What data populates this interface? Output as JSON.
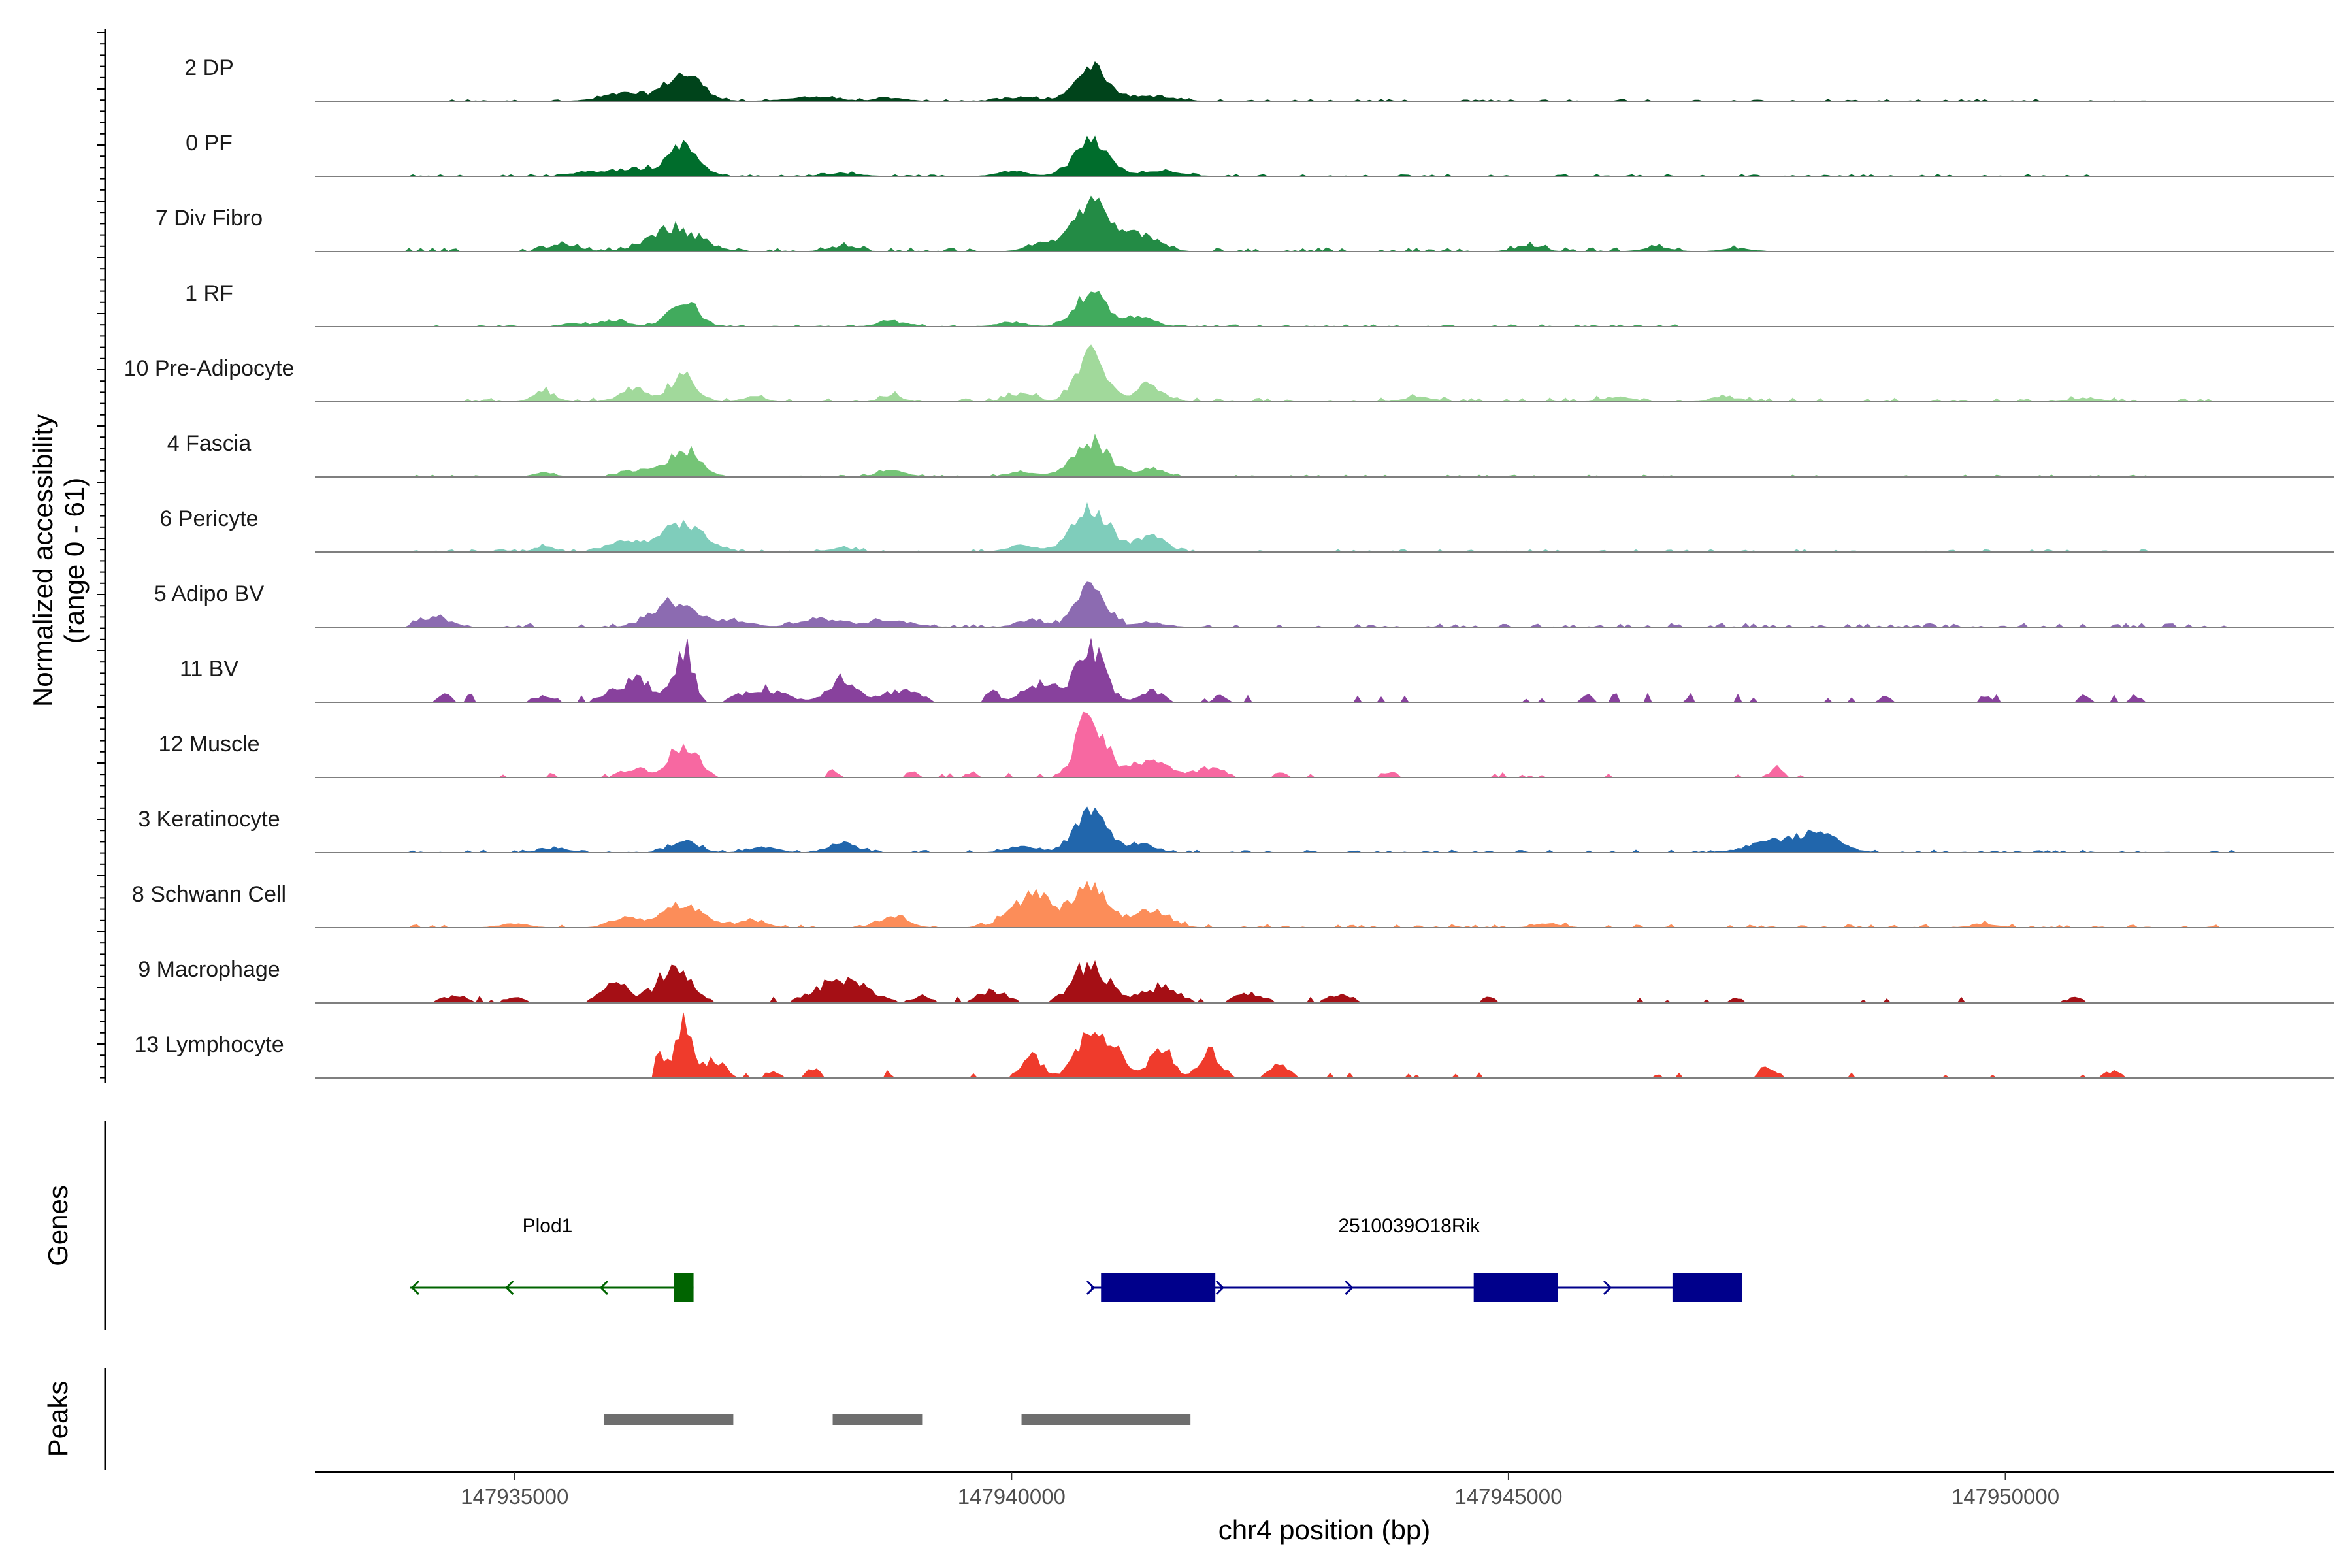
{
  "chart_data": {
    "type": "area",
    "title": "",
    "chromosome": "chr4",
    "xlabel": "chr4 position (bp)",
    "ylabel": "Normalized accessibility",
    "ylabel_range": "(range 0 - 61)",
    "ylim": [
      0,
      61
    ],
    "xlim": [
      147932990,
      147953310
    ],
    "x_ticks": [
      147935000,
      147940000,
      147945000,
      147950000
    ],
    "x_tick_labels": [
      "147935000",
      "147940000",
      "147945000",
      "147950000"
    ],
    "genes_label": "Genes",
    "peaks_label": "Peaks",
    "tracks": [
      {
        "name": "2 DP",
        "color": "#00441b",
        "peaks": [
          [
            147936700,
            0.42,
            260
          ],
          [
            147940800,
            0.58,
            230
          ],
          [
            147936100,
            0.12,
            300
          ],
          [
            147938000,
            0.06,
            350
          ],
          [
            147938800,
            0.05,
            200
          ],
          [
            147941400,
            0.08,
            300
          ],
          [
            147940100,
            0.06,
            250
          ]
        ],
        "noise": 0.03,
        "extent": [
          147934200,
          147951500
        ]
      },
      {
        "name": "0 PF",
        "color": "#006d2c",
        "peaks": [
          [
            147936700,
            0.46,
            220
          ],
          [
            147940800,
            0.55,
            240
          ],
          [
            147936200,
            0.12,
            300
          ],
          [
            147935700,
            0.06,
            200
          ],
          [
            147938300,
            0.05,
            250
          ],
          [
            147941500,
            0.07,
            300
          ],
          [
            147940000,
            0.08,
            200
          ]
        ],
        "noise": 0.03,
        "extent": [
          147933900,
          147951500
        ]
      },
      {
        "name": "7 Div Fibro",
        "color": "#238b45",
        "peaks": [
          [
            147936600,
            0.34,
            350
          ],
          [
            147940800,
            0.7,
            250
          ],
          [
            147941300,
            0.26,
            250
          ],
          [
            147940300,
            0.12,
            200
          ],
          [
            147935500,
            0.1,
            220
          ],
          [
            147938300,
            0.08,
            200
          ],
          [
            147945200,
            0.08,
            200
          ],
          [
            147946500,
            0.06,
            200
          ],
          [
            147947300,
            0.05,
            200
          ]
        ],
        "noise": 0.06,
        "extent": [
          147933900,
          147947600
        ]
      },
      {
        "name": "1 RF",
        "color": "#41ab5d",
        "peaks": [
          [
            147936700,
            0.4,
            200
          ],
          [
            147940800,
            0.52,
            220
          ],
          [
            147941300,
            0.15,
            200
          ],
          [
            147936000,
            0.1,
            200
          ],
          [
            147938800,
            0.08,
            200
          ],
          [
            147940000,
            0.07,
            200
          ],
          [
            147935600,
            0.05,
            150
          ]
        ],
        "noise": 0.03,
        "extent": [
          147933900,
          147947000
        ]
      },
      {
        "name": "10 Pre-Adipocyte",
        "color": "#a1d99b",
        "peaks": [
          [
            147936700,
            0.4,
            180
          ],
          [
            147940800,
            0.78,
            200
          ],
          [
            147941400,
            0.25,
            200
          ],
          [
            147936200,
            0.2,
            200
          ],
          [
            147935300,
            0.15,
            150
          ],
          [
            147938800,
            0.1,
            150
          ],
          [
            147937400,
            0.08,
            150
          ],
          [
            147940100,
            0.12,
            200
          ],
          [
            147944100,
            0.07,
            200
          ],
          [
            147946100,
            0.08,
            200
          ],
          [
            147947200,
            0.07,
            200
          ],
          [
            147950800,
            0.06,
            200
          ]
        ],
        "noise": 0.06,
        "extent": [
          147934500,
          147952200
        ]
      },
      {
        "name": "4 Fascia",
        "color": "#74c476",
        "peaks": [
          [
            147936700,
            0.42,
            230
          ],
          [
            147940800,
            0.55,
            250
          ],
          [
            147941400,
            0.12,
            200
          ],
          [
            147936200,
            0.1,
            200
          ],
          [
            147938800,
            0.1,
            200
          ],
          [
            147935300,
            0.06,
            150
          ],
          [
            147940100,
            0.08,
            200
          ]
        ],
        "noise": 0.03,
        "extent": [
          147933900,
          147952200
        ]
      },
      {
        "name": "6 Pericyte",
        "color": "#7fcdbb",
        "peaks": [
          [
            147936700,
            0.42,
            300
          ],
          [
            147940800,
            0.65,
            260
          ],
          [
            147941400,
            0.24,
            200
          ],
          [
            147936100,
            0.15,
            250
          ],
          [
            147935300,
            0.08,
            150
          ],
          [
            147938300,
            0.06,
            200
          ],
          [
            147940100,
            0.1,
            200
          ]
        ],
        "noise": 0.04,
        "extent": [
          147933900,
          147951500
        ]
      },
      {
        "name": "5 Adipo BV",
        "color": "#8c6bb1",
        "peaks": [
          [
            147936600,
            0.38,
            300
          ],
          [
            147940800,
            0.7,
            200
          ],
          [
            147934200,
            0.16,
            200
          ],
          [
            147938100,
            0.12,
            300
          ],
          [
            147938800,
            0.1,
            300
          ],
          [
            147937200,
            0.1,
            250
          ],
          [
            147941400,
            0.08,
            200
          ],
          [
            147940200,
            0.1,
            200
          ]
        ],
        "noise": 0.06,
        "extent": [
          147933900,
          147952200
        ]
      },
      {
        "name": "11 BV",
        "color": "#88419d",
        "peaks": [
          [
            147936700,
            0.9,
            120
          ],
          [
            147936200,
            0.35,
            300
          ],
          [
            147940800,
            0.8,
            200
          ],
          [
            147940300,
            0.28,
            250
          ],
          [
            147938300,
            0.4,
            200
          ],
          [
            147937500,
            0.22,
            300
          ],
          [
            147938900,
            0.2,
            250
          ],
          [
            147934300,
            0.15,
            80
          ],
          [
            147939800,
            0.2,
            80
          ],
          [
            147941400,
            0.2,
            150
          ],
          [
            147942100,
            0.12,
            80
          ],
          [
            147935300,
            0.1,
            150
          ],
          [
            147945800,
            0.1,
            80
          ],
          [
            147948800,
            0.1,
            80
          ],
          [
            147949800,
            0.1,
            80
          ],
          [
            147950800,
            0.1,
            80
          ],
          [
            147951300,
            0.1,
            80
          ]
        ],
        "noise": 0.09,
        "extent": [
          147934200,
          147951400
        ],
        "sparse": true
      },
      {
        "name": "12 Muscle",
        "color": "#f768a1",
        "peaks": [
          [
            147936700,
            0.52,
            200
          ],
          [
            147940800,
            0.95,
            200
          ],
          [
            147936200,
            0.15,
            200
          ],
          [
            147941400,
            0.3,
            250
          ],
          [
            147942000,
            0.15,
            200
          ],
          [
            147938200,
            0.1,
            80
          ],
          [
            147939000,
            0.1,
            80
          ],
          [
            147939600,
            0.08,
            80
          ],
          [
            147947700,
            0.15,
            100
          ],
          [
            147943800,
            0.1,
            100
          ],
          [
            147942700,
            0.08,
            100
          ]
        ],
        "noise": 0.05,
        "extent": [
          147934700,
          147948000
        ],
        "sparse": true
      },
      {
        "name": "3 Keratinocyte",
        "color": "#2166ac",
        "peaks": [
          [
            147936700,
            0.18,
            200
          ],
          [
            147940800,
            0.64,
            220
          ],
          [
            147948100,
            0.3,
            300
          ],
          [
            147947600,
            0.15,
            300
          ],
          [
            147938300,
            0.15,
            200
          ],
          [
            147941300,
            0.12,
            200
          ],
          [
            147937500,
            0.08,
            200
          ],
          [
            147935400,
            0.06,
            200
          ],
          [
            147940100,
            0.1,
            200
          ]
        ],
        "noise": 0.04,
        "extent": [
          147933900,
          147952300
        ]
      },
      {
        "name": "8 Schwann Cell",
        "color": "#fc8d59",
        "peaks": [
          [
            147936700,
            0.35,
            300
          ],
          [
            147940800,
            0.6,
            250
          ],
          [
            147940200,
            0.5,
            300
          ],
          [
            147941400,
            0.25,
            250
          ],
          [
            147936100,
            0.15,
            200
          ],
          [
            147938800,
            0.18,
            200
          ],
          [
            147937400,
            0.1,
            200
          ],
          [
            147935000,
            0.06,
            200
          ],
          [
            147945400,
            0.06,
            200
          ],
          [
            147949800,
            0.05,
            200
          ]
        ],
        "noise": 0.05,
        "extent": [
          147933900,
          147952200
        ]
      },
      {
        "name": "9 Macrophage",
        "color": "#a50f15",
        "peaks": [
          [
            147936600,
            0.5,
            250
          ],
          [
            147936000,
            0.3,
            200
          ],
          [
            147938300,
            0.38,
            350
          ],
          [
            147940800,
            0.62,
            250
          ],
          [
            147941500,
            0.25,
            250
          ],
          [
            147939800,
            0.2,
            200
          ],
          [
            147942400,
            0.15,
            200
          ],
          [
            147934400,
            0.1,
            200
          ],
          [
            147935000,
            0.08,
            150
          ],
          [
            147939100,
            0.1,
            150
          ],
          [
            147943300,
            0.12,
            200
          ],
          [
            147944800,
            0.08,
            100
          ],
          [
            147947300,
            0.08,
            100
          ],
          [
            147950700,
            0.08,
            100
          ]
        ],
        "noise": 0.07,
        "extent": [
          147933900,
          147950800
        ],
        "sparse": true
      },
      {
        "name": "13 Lymphocyte",
        "color": "#ef3b2c",
        "peaks": [
          [
            147936700,
            1.0,
            100
          ],
          [
            147936400,
            0.4,
            150
          ],
          [
            147937000,
            0.3,
            150
          ],
          [
            147940800,
            0.7,
            200
          ],
          [
            147941500,
            0.5,
            150
          ],
          [
            147941100,
            0.3,
            150
          ],
          [
            147940200,
            0.35,
            150
          ],
          [
            147942000,
            0.4,
            150
          ],
          [
            147942700,
            0.2,
            150
          ],
          [
            147947600,
            0.18,
            100
          ],
          [
            147951100,
            0.12,
            120
          ],
          [
            147937600,
            0.12,
            100
          ],
          [
            147938000,
            0.15,
            100
          ]
        ],
        "noise": 0.08,
        "extent": [
          147936400,
          147951200
        ],
        "sparse": true
      }
    ],
    "genes": [
      {
        "name": "Plod1",
        "strand": "-",
        "color": "#006400",
        "start": 147933950,
        "end": 147936800,
        "exons": [
          [
            147936600,
            147936800
          ]
        ],
        "label_pos": 147935330
      },
      {
        "name": "2510039O18Rik",
        "strand": "+",
        "color": "#00008b",
        "start": 147940800,
        "end": 147947300,
        "exons": [
          [
            147940900,
            147942050
          ],
          [
            147944650,
            147945500
          ],
          [
            147946650,
            147947350
          ]
        ],
        "label_pos": 147944000
      }
    ],
    "peaks": [
      [
        147935900,
        147937200
      ],
      [
        147938200,
        147939100
      ],
      [
        147940100,
        147941800
      ]
    ],
    "peaks_color": "#6e6e6e"
  }
}
